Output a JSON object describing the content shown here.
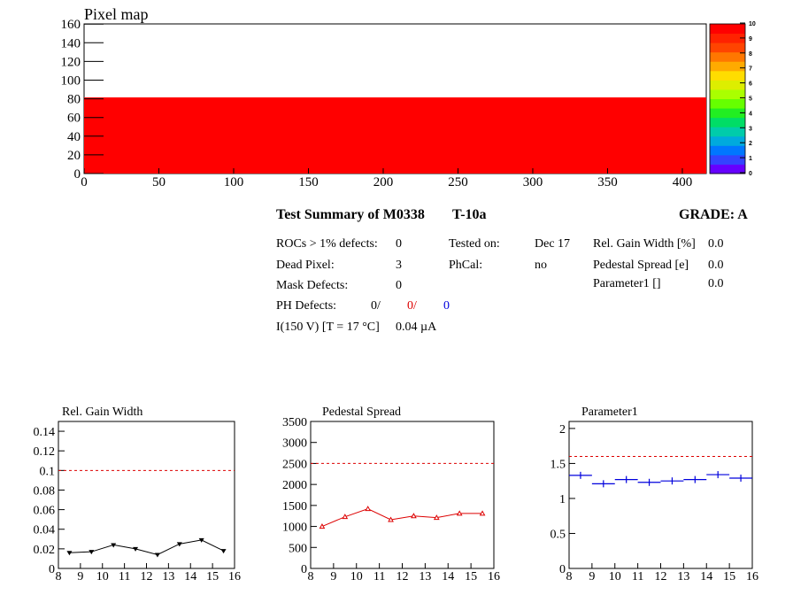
{
  "pixel_map": {
    "title": "Pixel map",
    "x_ticks": [
      "0",
      "50",
      "100",
      "150",
      "200",
      "250",
      "300",
      "350",
      "400"
    ],
    "y_ticks": [
      "0",
      "20",
      "40",
      "60",
      "80",
      "100",
      "120",
      "140",
      "160"
    ],
    "palette_ticks": [
      "0",
      "1",
      "2",
      "3",
      "4",
      "5",
      "6",
      "7",
      "8",
      "9",
      "10"
    ],
    "fill_color": "#ff0000"
  },
  "summary": {
    "title": "Test Summary of M0338",
    "test": "T-10a",
    "grade": "GRADE:  A",
    "rocs_label": "ROCs > 1% defects:",
    "rocs_value": "0",
    "dead_label": "Dead Pixel:",
    "dead_value": "3",
    "mask_label": "Mask Defects:",
    "mask_value": "0",
    "ph_label": "PH Defects:",
    "ph_v1": "0/",
    "ph_v2": "0/",
    "ph_v3": "0",
    "iv_label": "I(150 V) [T = 17 °C]",
    "iv_value": "0.04 µA",
    "tested_label": "Tested on:",
    "tested_value": "Dec 17",
    "phcal_label": "PhCal:",
    "phcal_value": "no",
    "gain_label": "Rel. Gain Width [%]",
    "gain_value": "0.0",
    "ped_label": "Pedestal Spread [e]",
    "ped_value": "0.0",
    "par_label": "Parameter1 []",
    "par_value": "0.0"
  },
  "chart_data": [
    {
      "type": "line",
      "title": "Rel. Gain Width",
      "x": [
        8.5,
        9.5,
        10.5,
        11.5,
        12.5,
        13.5,
        14.5,
        15.5
      ],
      "values": [
        0.016,
        0.017,
        0.024,
        0.02,
        0.014,
        0.025,
        0.029,
        0.018
      ],
      "xlim": [
        8,
        16
      ],
      "ylim": [
        0,
        0.15
      ],
      "x_ticks": [
        "8",
        "9",
        "10",
        "11",
        "12",
        "13",
        "14",
        "15",
        "16"
      ],
      "y_ticks": [
        "0",
        "0.02",
        "0.04",
        "0.06",
        "0.08",
        "0.1",
        "0.12",
        "0.14"
      ],
      "reference": 0.1,
      "color": "#000000"
    },
    {
      "type": "line",
      "title": "Pedestal Spread",
      "x": [
        8.5,
        9.5,
        10.5,
        11.5,
        12.5,
        13.5,
        14.5,
        15.5
      ],
      "values": [
        1000,
        1230,
        1420,
        1160,
        1250,
        1210,
        1310,
        1310
      ],
      "xlim": [
        8,
        16
      ],
      "ylim": [
        0,
        3500
      ],
      "x_ticks": [
        "8",
        "9",
        "10",
        "11",
        "12",
        "13",
        "14",
        "15",
        "16"
      ],
      "y_ticks": [
        "0",
        "500",
        "1000",
        "1500",
        "2000",
        "2500",
        "3000",
        "3500"
      ],
      "reference": 2500,
      "color": "#dd0000"
    },
    {
      "type": "scatter",
      "title": "Parameter1",
      "x": [
        8.5,
        9.5,
        10.5,
        11.5,
        12.5,
        13.5,
        14.5,
        15.5
      ],
      "values": [
        1.33,
        1.21,
        1.27,
        1.23,
        1.25,
        1.27,
        1.34,
        1.29
      ],
      "xlim": [
        8,
        16
      ],
      "ylim": [
        0,
        2.1
      ],
      "x_ticks": [
        "8",
        "9",
        "10",
        "11",
        "12",
        "13",
        "14",
        "15",
        "16"
      ],
      "y_ticks": [
        "0",
        "0.5",
        "1",
        "1.5",
        "2"
      ],
      "reference": 1.6,
      "color": "#0000dd"
    }
  ]
}
